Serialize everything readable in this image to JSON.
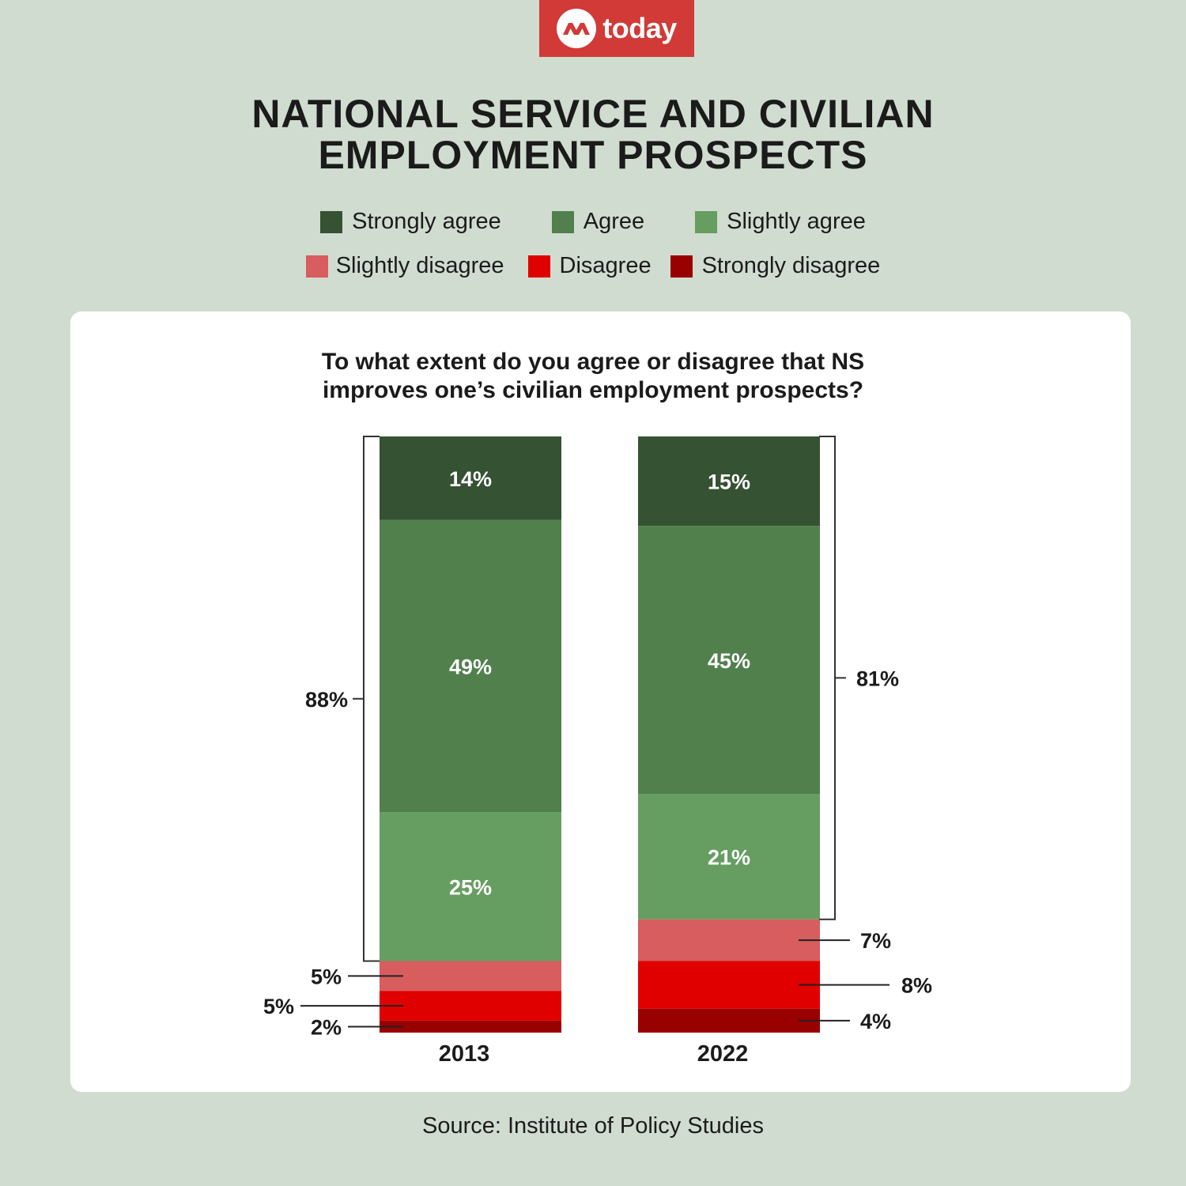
{
  "brand": {
    "name": "today"
  },
  "title_lines": [
    "NATIONAL SERVICE AND CIVILIAN",
    "EMPLOYMENT PROSPECTS"
  ],
  "source": "Source: Institute of Policy Studies",
  "chart_data": {
    "type": "bar",
    "stacked": true,
    "title": "To what extent do you agree or disagree that NS improves one’s civilian employment prospects?",
    "question_lines": [
      "To what extent do you agree or disagree that NS",
      "improves one’s civilian employment prospects?"
    ],
    "categories": [
      "2013",
      "2022"
    ],
    "series": [
      {
        "name": "Strongly agree",
        "color": "#355232",
        "values": [
          14,
          15
        ]
      },
      {
        "name": "Agree",
        "color": "#51804c",
        "values": [
          49,
          45
        ]
      },
      {
        "name": "Slightly agree",
        "color": "#669e61",
        "values": [
          25,
          21
        ]
      },
      {
        "name": "Slightly disagree",
        "color": "#d75d5e",
        "values": [
          5,
          7
        ]
      },
      {
        "name": "Disagree",
        "color": "#e00000",
        "values": [
          5,
          8
        ]
      },
      {
        "name": "Strongly disagree",
        "color": "#990000",
        "values": [
          2,
          4
        ]
      }
    ],
    "agree_totals": [
      "88%",
      "81%"
    ],
    "ylim": [
      0,
      100
    ]
  }
}
